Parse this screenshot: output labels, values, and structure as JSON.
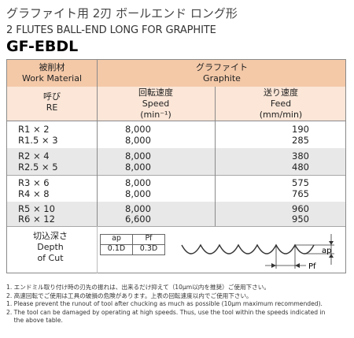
{
  "title_ja": "グラファイト用 2刃 ボールエンド ロング形",
  "title_en": "2 FLUTES BALL-END LONG FOR GRAPHITE",
  "model": "GF-EBDL",
  "header": {
    "work_material_ja": "被削材",
    "work_material_en": "Work Material",
    "graphite_ja": "グラファイト",
    "graphite_en": "Graphite",
    "re_ja": "呼び",
    "re_en": "RE",
    "speed_ja": "回転速度",
    "speed_en": "Speed",
    "speed_unit": "(min⁻¹)",
    "feed_ja": "送り速度",
    "feed_en": "Feed",
    "feed_unit": "(mm/min)"
  },
  "rows": [
    {
      "re": "R1 × 2",
      "speed": "8,000",
      "feed": "190"
    },
    {
      "re": "R1.5 × 3",
      "speed": "8,000",
      "feed": "285"
    },
    {
      "re": "R2 × 4",
      "speed": "8,000",
      "feed": "380"
    },
    {
      "re": "R2.5 × 5",
      "speed": "8,000",
      "feed": "480"
    },
    {
      "re": "R3 × 6",
      "speed": "8,000",
      "feed": "575"
    },
    {
      "re": "R4 × 8",
      "speed": "8,000",
      "feed": "765"
    },
    {
      "re": "R5 × 10",
      "speed": "8,000",
      "feed": "960"
    },
    {
      "re": "R6 × 12",
      "speed": "6,600",
      "feed": "950"
    }
  ],
  "depth": {
    "label_ja": "切込深さ",
    "label_en1": "Depth",
    "label_en2": "of Cut",
    "ap_label": "ap",
    "pf_label": "Pf",
    "ap_value": "0.1D",
    "pf_value": "0.3D",
    "diagram_ap": "ap",
    "diagram_pf": "Pf"
  },
  "notes": [
    "1. エンドミル取り付け時の刃先の振れは、出来るだけ抑えて（10μm以内を推奨）ご使用下さい。",
    "2. 高速回転でご使用は工具の破損の危険があります。上表の回転速度以内でご使用下さい。",
    "1. Please prevent the runout of tool after chucking as much as possible (10μm maximum recommended).",
    "2. The tool can be damaged by operating at high speeds. Thus, use the tool within the speeds indicated in",
    "    the above table."
  ],
  "colors": {
    "header": "#f4c9a8",
    "subheader": "#fbe6d7",
    "gray_row": "#e8e8e8"
  }
}
